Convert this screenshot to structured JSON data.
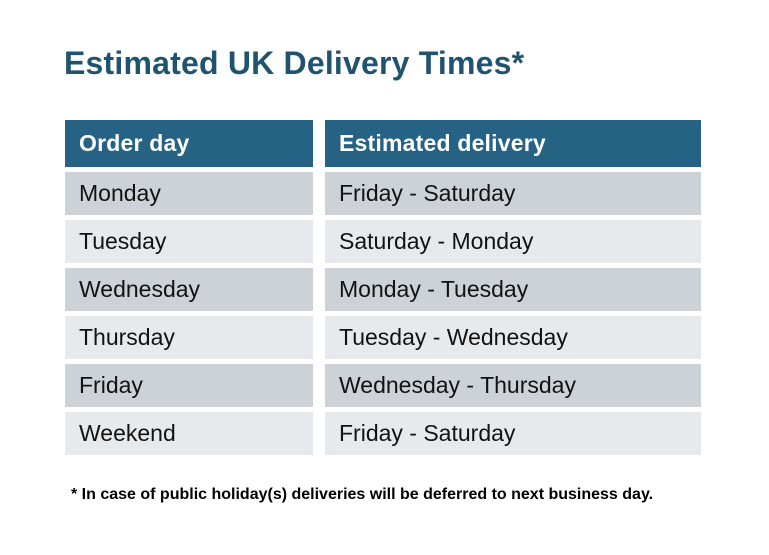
{
  "title": "Estimated UK Delivery Times*",
  "table": {
    "columns": [
      {
        "label": "Order day"
      },
      {
        "label": "Estimated delivery"
      }
    ],
    "rows": [
      {
        "order_day": "Monday",
        "delivery": "Friday - Saturday"
      },
      {
        "order_day": "Tuesday",
        "delivery": "Saturday - Monday"
      },
      {
        "order_day": "Wednesday",
        "delivery": "Monday - Tuesday"
      },
      {
        "order_day": "Thursday",
        "delivery": "Tuesday - Wednesday"
      },
      {
        "order_day": "Friday",
        "delivery": "Wednesday - Thursday"
      },
      {
        "order_day": "Weekend",
        "delivery": "Friday - Saturday"
      }
    ]
  },
  "footnote": "* In case of public holiday(s) deliveries will be deferred to next business day.",
  "colors": {
    "header_bg": "#266284",
    "header_text": "#ffffff",
    "row_odd_bg": "#cdd2d8",
    "row_even_bg": "#e7eaed",
    "title_text": "#20546e",
    "body_text": "#121212"
  }
}
